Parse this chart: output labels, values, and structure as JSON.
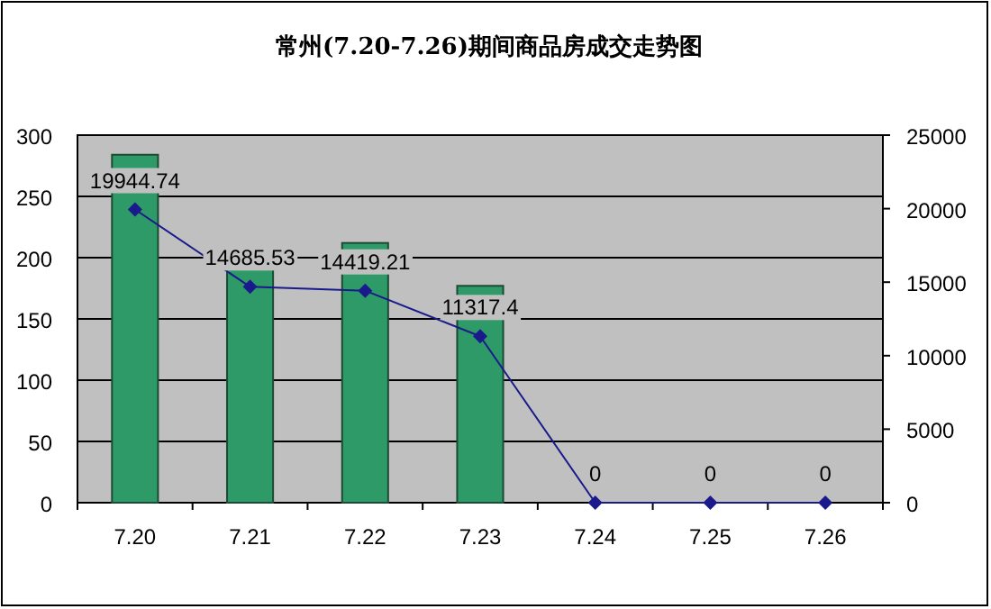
{
  "chart_data": {
    "type": "bar",
    "title": "常州(7.20-7.26)期间商品房成交走势图",
    "categories": [
      "7.20",
      "7.21",
      "7.22",
      "7.23",
      "7.24",
      "7.25",
      "7.26"
    ],
    "series": [
      {
        "color": "#2e9a68",
        "values": [
          284,
          191,
          212,
          177,
          0,
          0,
          0
        ]
      },
      {
        "type": "line",
        "axis": "y2",
        "color": "#1a1a8c",
        "marker": "diamond",
        "values": [
          19944.74,
          14685.53,
          14419.21,
          11317.4,
          0,
          0,
          0
        ],
        "value_labels": [
          "19944.74",
          "14685.53",
          "14419.21",
          "11317.4",
          "0",
          "0",
          "0"
        ]
      }
    ],
    "ylim": [
      0,
      300
    ],
    "yticks": [
      0,
      50,
      100,
      150,
      200,
      250,
      300
    ],
    "y2lim": [
      0,
      25000
    ],
    "y2ticks": [
      0,
      5000,
      10000,
      15000,
      20000,
      25000
    ],
    "grid": "y"
  }
}
